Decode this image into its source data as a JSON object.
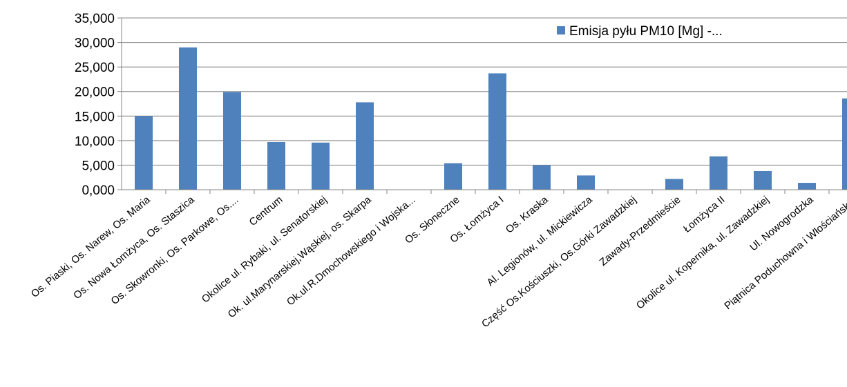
{
  "chart_data": {
    "type": "bar",
    "categories": [
      "Os. Piaski, Os. Narew, Os. Maria",
      "Os. Nowa Łomżyca, Os. Staszica",
      "Os. Skowronki, Os. Parkowe, Os....",
      "Centrum",
      "Okolice ul. Rybaki, ul. Senatorskiej",
      "Ok. ul.Marynarskiej,Wąskiej, os. Skarpa",
      "Ok.ul.R.Dmochowskiego i Wojska...",
      "Os. Słoneczne",
      "Os. Łomżyca I",
      "Os. Kraska",
      "Al. Legionów, ul. Mickiewicza",
      "Część Os.Kościuszki, Os.Górki Zawadzkiej",
      "Zawady-Przedmieście",
      "Łomżyca II",
      "Okolice ul. Kopernika, ul. Zawadzkiej",
      "Ul. Nowogrodzka",
      "Piątnica Poduchowna i Włościańska*"
    ],
    "series": [
      {
        "name": "Emisja pyłu PM10 [Mg] -...",
        "color": "#4f81bd",
        "values": [
          15.0,
          29.0,
          19.9,
          9.7,
          9.6,
          17.8,
          0,
          5.4,
          23.7,
          5.0,
          2.9,
          0,
          2.2,
          6.8,
          3.8,
          1.4,
          18.6
        ]
      }
    ],
    "yticks": [
      "0,000",
      "5,000",
      "10,000",
      "15,000",
      "20,000",
      "25,000",
      "30,000",
      "35,000"
    ],
    "ylim": [
      0,
      35
    ],
    "grid": true,
    "legend_position": "top-right"
  }
}
